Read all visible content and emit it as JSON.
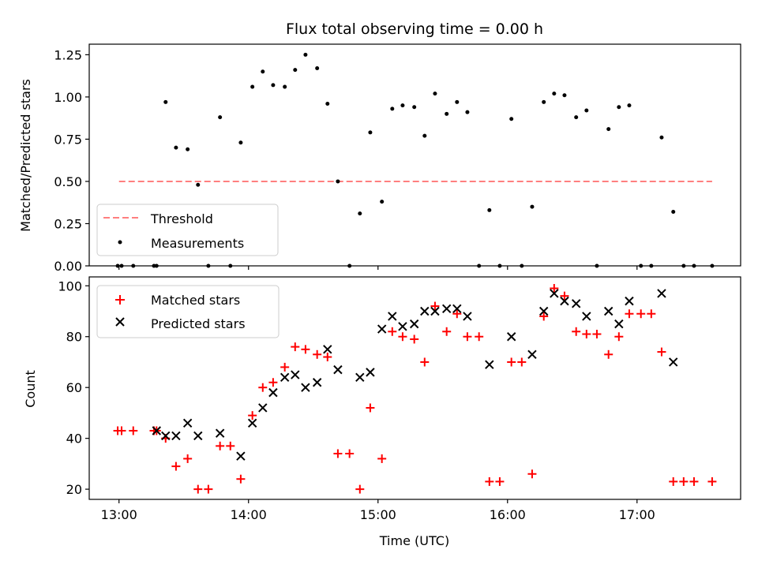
{
  "chart_data": [
    {
      "type": "scatter",
      "title": "Flux total observing time = 0.00 h",
      "xlabel": "",
      "ylabel": "Matched/Predicted stars",
      "xlim": [
        12.77,
        17.8
      ],
      "ylim": [
        0,
        1.3125
      ],
      "x_ticks": [
        13,
        14,
        15,
        16,
        17
      ],
      "y_ticks": [
        0.0,
        0.25,
        0.5,
        0.75,
        1.0,
        1.25
      ],
      "y_tick_labels": [
        "0.00",
        "0.25",
        "0.50",
        "0.75",
        "1.00",
        "1.25"
      ],
      "legend": {
        "position": "lower-left",
        "entries": [
          "Threshold",
          "Measurements"
        ]
      },
      "colors": {
        "threshold": "#ff7f7f",
        "measurements": "#000000"
      },
      "threshold": {
        "name": "Threshold",
        "y": 0.5,
        "x": [
          13.0,
          17.58
        ],
        "style": "dashed"
      },
      "series": [
        {
          "name": "Measurements",
          "x": [
            12.99,
            13.02,
            13.11,
            13.27,
            13.29,
            13.36,
            13.44,
            13.53,
            13.61,
            13.69,
            13.78,
            13.86,
            13.94,
            14.03,
            14.11,
            14.19,
            14.28,
            14.36,
            14.44,
            14.53,
            14.61,
            14.69,
            14.78,
            14.86,
            14.94,
            15.03,
            15.11,
            15.19,
            15.28,
            15.36,
            15.44,
            15.53,
            15.61,
            15.69,
            15.78,
            15.86,
            15.94,
            16.03,
            16.11,
            16.19,
            16.28,
            16.36,
            16.44,
            16.53,
            16.61,
            16.69,
            16.78,
            16.86,
            16.94,
            17.03,
            17.11,
            17.19,
            17.28,
            17.36,
            17.44,
            17.58
          ],
          "y": [
            0.0,
            0.0,
            0.0,
            0.0,
            0.0,
            0.97,
            0.7,
            0.69,
            0.48,
            0.0,
            0.88,
            0.0,
            0.73,
            1.06,
            1.15,
            1.07,
            1.06,
            1.16,
            1.25,
            1.17,
            0.96,
            0.5,
            0.0,
            0.31,
            0.79,
            0.38,
            0.93,
            0.95,
            0.94,
            0.77,
            1.02,
            0.9,
            0.97,
            0.91,
            0.0,
            0.33,
            0.0,
            0.87,
            0.0,
            0.35,
            0.97,
            1.02,
            1.01,
            0.88,
            0.92,
            0.0,
            0.81,
            0.94,
            0.95,
            0.0,
            0.0,
            0.76,
            0.32,
            0.0,
            0.0,
            0.0
          ]
        }
      ]
    },
    {
      "type": "scatter",
      "title": "",
      "xlabel": "Time (UTC)",
      "ylabel": "Count",
      "xlim": [
        12.77,
        17.8
      ],
      "ylim": [
        16,
        103.5
      ],
      "x_ticks": [
        13,
        14,
        15,
        16,
        17
      ],
      "x_tick_labels": [
        "13:00",
        "14:00",
        "15:00",
        "16:00",
        "17:00"
      ],
      "y_ticks": [
        20,
        40,
        60,
        80,
        100
      ],
      "y_tick_labels": [
        "20",
        "40",
        "60",
        "80",
        "100"
      ],
      "legend": {
        "position": "top-left",
        "entries": [
          "Matched stars",
          "Predicted stars"
        ]
      },
      "colors": {
        "matched": "#ff0000",
        "predicted": "#000000"
      },
      "series": [
        {
          "name": "Matched stars",
          "marker": "plus",
          "x": [
            12.99,
            13.02,
            13.11,
            13.27,
            13.29,
            13.36,
            13.44,
            13.53,
            13.61,
            13.69,
            13.78,
            13.86,
            13.94,
            14.03,
            14.11,
            14.19,
            14.28,
            14.36,
            14.44,
            14.53,
            14.61,
            14.69,
            14.78,
            14.86,
            14.94,
            15.03,
            15.11,
            15.19,
            15.28,
            15.36,
            15.44,
            15.53,
            15.61,
            15.69,
            15.78,
            15.86,
            15.94,
            16.03,
            16.11,
            16.19,
            16.28,
            16.36,
            16.44,
            16.53,
            16.61,
            16.69,
            16.78,
            16.86,
            16.94,
            17.03,
            17.11,
            17.19,
            17.28,
            17.36,
            17.44,
            17.58
          ],
          "y": [
            43,
            43,
            43,
            43,
            43,
            40,
            29,
            32,
            20,
            20,
            37,
            37,
            24,
            49,
            60,
            62,
            68,
            76,
            75,
            73,
            72,
            34,
            34,
            20,
            52,
            32,
            82,
            80,
            79,
            70,
            92,
            82,
            89,
            80,
            80,
            23,
            23,
            70,
            70,
            26,
            88,
            99,
            96,
            82,
            81,
            81,
            73,
            80,
            89,
            89,
            89,
            74,
            23,
            23,
            23,
            23
          ]
        },
        {
          "name": "Predicted stars",
          "marker": "x",
          "x": [
            13.29,
            13.36,
            13.44,
            13.53,
            13.61,
            13.78,
            13.94,
            14.03,
            14.11,
            14.19,
            14.28,
            14.36,
            14.44,
            14.53,
            14.61,
            14.69,
            14.86,
            14.94,
            15.03,
            15.11,
            15.19,
            15.28,
            15.36,
            15.44,
            15.53,
            15.61,
            15.69,
            15.86,
            16.03,
            16.19,
            16.28,
            16.36,
            16.44,
            16.53,
            16.61,
            16.78,
            16.86,
            16.94,
            17.19,
            17.28
          ],
          "y": [
            43,
            41,
            41,
            46,
            41,
            42,
            33,
            46,
            52,
            58,
            64,
            65,
            60,
            62,
            75,
            67,
            64,
            66,
            83,
            88,
            84,
            85,
            90,
            90,
            91,
            91,
            88,
            69,
            80,
            73,
            90,
            97,
            94,
            93,
            88,
            90,
            85,
            94,
            97,
            70
          ]
        }
      ]
    }
  ]
}
